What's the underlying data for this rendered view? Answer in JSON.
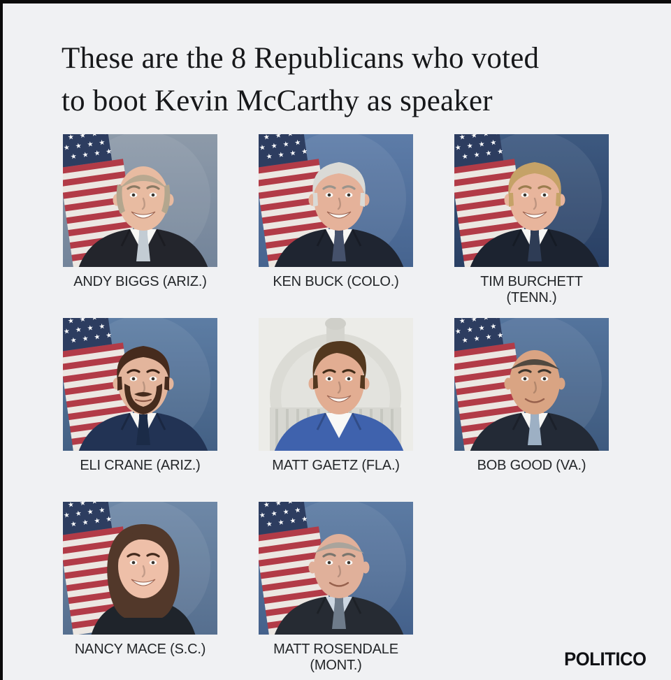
{
  "page": {
    "background": "#f0f1f3",
    "edge_color": "#0b0b0b",
    "title_line1": "These are the 8 Republicans who voted",
    "title_line2": "to boot Kevin McCarthy as speaker",
    "title_color": "#17181a",
    "caption_color": "#232629",
    "brand": "POLITICO",
    "brand_color": "#101114"
  },
  "members": [
    {
      "name": "Andy Biggs",
      "caption_lines": [
        "ANDY BIGGS (ARIZ.)"
      ],
      "portrait": {
        "bg1": "#8d9aa9",
        "bg2": "#73849a",
        "flag": true,
        "capitol": false,
        "skin": "#e8bba1",
        "hair": "#b3a68e",
        "brow": "#8a7a64",
        "hair_style": "balding",
        "beard": null,
        "suit": "#23252c",
        "shirt": "#f6f6f4",
        "tie": "#c3ccd4",
        "smile": "grin",
        "female": false
      }
    },
    {
      "name": "Ken Buck",
      "caption_lines": [
        "KEN BUCK (COLO.)"
      ],
      "portrait": {
        "bg1": "#5d7ca8",
        "bg2": "#46648f",
        "flag": true,
        "capitol": false,
        "skin": "#e5b29a",
        "hair": "#dadad6",
        "brow": "#9a948c",
        "hair_style": "full",
        "beard": null,
        "suit": "#1f2531",
        "shirt": "#f7f7f5",
        "tie": "#45516b",
        "smile": "grin",
        "female": false
      }
    },
    {
      "name": "Tim Burchett",
      "caption_lines": [
        "TIM BURCHETT",
        "(TENN.)"
      ],
      "portrait": {
        "bg1": "#3d5980",
        "bg2": "#293f63",
        "flag": true,
        "capitol": false,
        "skin": "#e8b59c",
        "hair": "#c5a267",
        "brow": "#9b7d4e",
        "hair_style": "full",
        "beard": null,
        "suit": "#1c2330",
        "shirt": "#f6f6f4",
        "tie": "#2e3c55",
        "smile": "grin",
        "female": false
      }
    },
    {
      "name": "Eli Crane",
      "caption_lines": [
        "ELI CRANE (ARIZ.)"
      ],
      "portrait": {
        "bg1": "#5d7da4",
        "bg2": "#436084",
        "flag": true,
        "capitol": false,
        "skin": "#e3b59c",
        "hair": "#462b1d",
        "brow": "#3a2316",
        "hair_style": "full",
        "beard": "#462b1d",
        "suit": "#223354",
        "shirt": "#f6f6f4",
        "tie": "#1b2b47",
        "smile": "neutral",
        "female": false
      }
    },
    {
      "name": "Matt Gaetz",
      "caption_lines": [
        "MATT GAETZ (FLA.)"
      ],
      "portrait": {
        "bg1": "#ecede9",
        "bg2": "#e0e1dc",
        "flag": false,
        "capitol": true,
        "skin": "#e2ad92",
        "hair": "#53381f",
        "brow": "#422c18",
        "hair_style": "swept",
        "beard": null,
        "suit": "#3f62ad",
        "shirt": "#f8f8f6",
        "tie": null,
        "smile": "grin",
        "female": false
      }
    },
    {
      "name": "Bob Good",
      "caption_lines": [
        "BOB GOOD (VA.)"
      ],
      "portrait": {
        "bg1": "#54749d",
        "bg2": "#3e5a7e",
        "flag": true,
        "capitol": false,
        "skin": "#d9a483",
        "hair": "#4a443c",
        "brow": "#3c362e",
        "hair_style": "thin",
        "beard": null,
        "suit": "#232a36",
        "shirt": "#f6f6f4",
        "tie": "#9db0c4",
        "smile": "soft",
        "female": false
      }
    },
    {
      "name": "Nancy Mace",
      "caption_lines": [
        "NANCY MACE (S.C.)"
      ],
      "portrait": {
        "bg1": "#6e88a7",
        "bg2": "#566f8f",
        "flag": true,
        "capitol": false,
        "skin": "#eebfa8",
        "hair": "#52382a",
        "brow": "#42291c",
        "hair_style": "long",
        "beard": null,
        "suit": "#1f242b",
        "shirt": "#eebfa8",
        "tie": null,
        "smile": "grin",
        "female": true
      }
    },
    {
      "name": "Matt Rosendale",
      "caption_lines": [
        "MATT ROSENDALE",
        "(MONT.)"
      ],
      "portrait": {
        "bg1": "#5c7ba3",
        "bg2": "#44618b",
        "flag": true,
        "capitol": false,
        "skin": "#e0b09a",
        "hair": "#a9a49c",
        "brow": "#7a756d",
        "hair_style": "crew",
        "beard": null,
        "suit": "#262b33",
        "shirt": "#ccd6e1",
        "tie": "#6e7b8a",
        "smile": "soft",
        "female": false
      }
    }
  ]
}
